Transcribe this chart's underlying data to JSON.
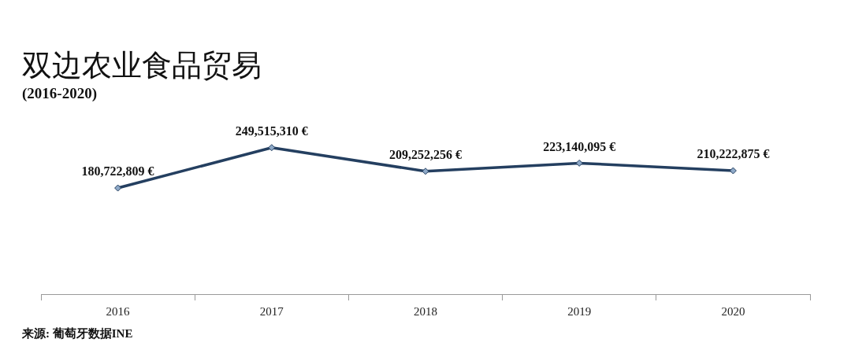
{
  "chart_data": {
    "type": "line",
    "title": "双边农业食品贸易",
    "subtitle": "(2016-2020)",
    "categories": [
      "2016",
      "2017",
      "2018",
      "2019",
      "2020"
    ],
    "series": [
      {
        "color": "#243f60",
        "values": [
          180722809,
          249515310,
          209252256,
          223140095,
          210222875
        ],
        "value_labels": [
          "180,722,809 €",
          "249,515,310 €",
          "209,252,256 €",
          "223,140,095 €",
          "210,222,875 €"
        ]
      }
    ],
    "marker": "diamond",
    "line_style": "solid",
    "grid": false,
    "legend": false,
    "annotations": [
      "来源: 葡萄牙数据INE"
    ]
  }
}
